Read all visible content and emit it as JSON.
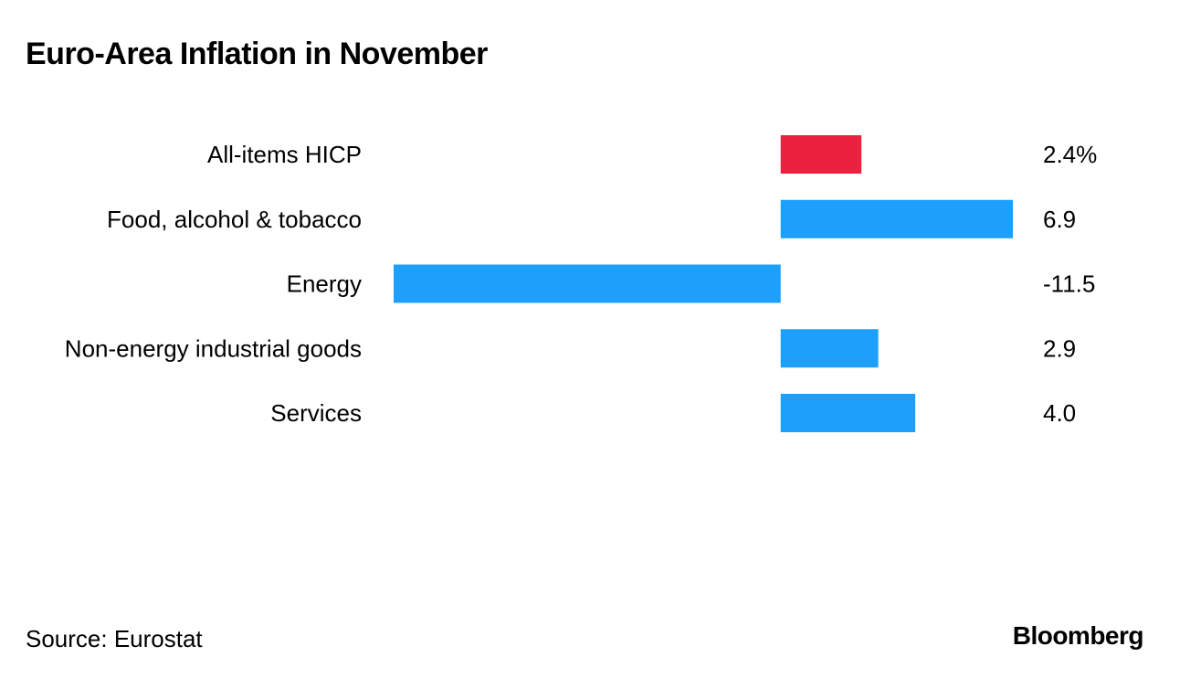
{
  "colors": {
    "highlight": "#ec2140",
    "bar": "#1f9ffc",
    "text": "#000000"
  },
  "chart_data": {
    "type": "bar",
    "orientation": "horizontal",
    "title": "Euro-Area Inflation in November",
    "categories": [
      "All-items HICP",
      "Food, alcohol & tobacco",
      "Energy",
      "Non-energy industrial goods",
      "Services"
    ],
    "values": [
      2.4,
      6.9,
      -11.5,
      2.9,
      4.0
    ],
    "value_labels": [
      "2.4%",
      "6.9",
      "-11.5",
      "2.9",
      "4.0"
    ],
    "highlight_index": 0,
    "xlim": [
      -11.5,
      6.9
    ],
    "xlabel": "",
    "ylabel": "",
    "grid": false,
    "legend": "none"
  },
  "footer": {
    "source": "Source: Eurostat",
    "brand": "Bloomberg"
  }
}
